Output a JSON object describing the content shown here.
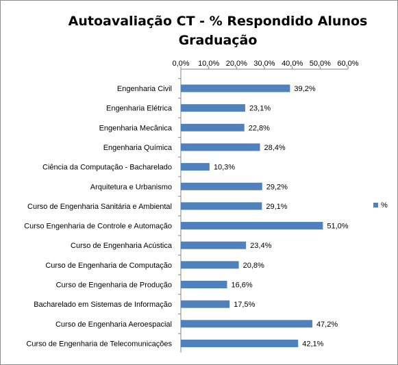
{
  "chart_data": {
    "type": "bar",
    "orientation": "horizontal",
    "title_lines": [
      "Autoavaliação CT - % Respondido Alunos",
      "Graduação"
    ],
    "categories": [
      "Engenharia Civil",
      "Engenharia Elétrica",
      "Engenharia Mecânica",
      "Engenharia Química",
      "Ciência da Computação  - Bacharelado",
      "Arquitetura e Urbanismo",
      "Curso de Engenharia Sanitária e Ambiental",
      "Curso Engenharia de Controle e Automação",
      "Curso de Engenharia Acústica",
      "Curso de Engenharia de Computação",
      "Curso de Engenharia de Produção",
      "Bacharelado em Sistemas de Informação",
      "Curso de Engenharia Aeroespacial",
      "Curso de Engenharia de Telecomunicações"
    ],
    "series": [
      {
        "name": "%",
        "values": [
          39.2,
          23.1,
          22.8,
          28.4,
          10.3,
          29.2,
          29.1,
          51.0,
          23.4,
          20.8,
          16.6,
          17.5,
          47.2,
          42.1
        ],
        "labels": [
          "39,2%",
          "23,1%",
          "22,8%",
          "28,4%",
          "10,3%",
          "29,2%",
          "29,1%",
          "51,0%",
          "23,4%",
          "20,8%",
          "16,6%",
          "17,5%",
          "47,2%",
          "42,1%"
        ]
      }
    ],
    "xlim": [
      0,
      60
    ],
    "ticks": [
      "0,0%",
      "10,0%",
      "20,0%",
      "30,0%",
      "40,0%",
      "50,0%",
      "60,0%"
    ],
    "x_axis_position": "top",
    "grid": false,
    "legend_position": "right",
    "colors": {
      "bar": "#4f81bd",
      "axis": "#868686"
    }
  }
}
